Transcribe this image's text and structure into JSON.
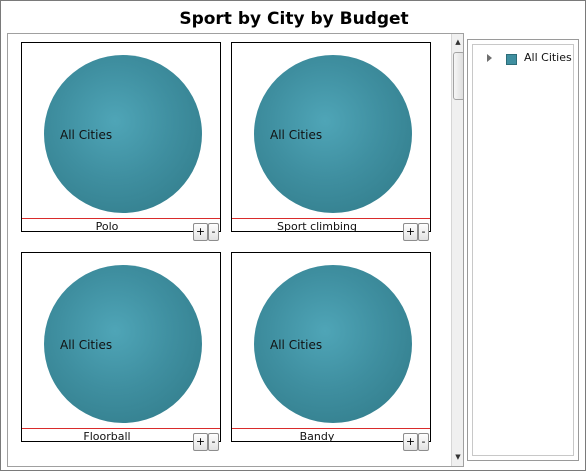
{
  "title": "Sport by City by Budget",
  "tiles": [
    {
      "pie_label": "All Cities",
      "caption": "Polo",
      "plus": "+",
      "minus": "-"
    },
    {
      "pie_label": "All Cities",
      "caption": "Sport climbing",
      "plus": "+",
      "minus": "-"
    },
    {
      "pie_label": "All Cities",
      "caption": "Floorball",
      "plus": "+",
      "minus": "-"
    },
    {
      "pie_label": "All Cities",
      "caption": "Bandy",
      "plus": "+",
      "minus": "-"
    }
  ],
  "legend": {
    "items": [
      {
        "label": "All Cities",
        "color": "#3f8fa0",
        "expander_icon": "chevron-right-icon"
      }
    ]
  },
  "scrollbar": {
    "up_glyph": "▲",
    "down_glyph": "▼"
  },
  "colors": {
    "pie": "#3f8fa0",
    "separator": "#d92b2b"
  }
}
